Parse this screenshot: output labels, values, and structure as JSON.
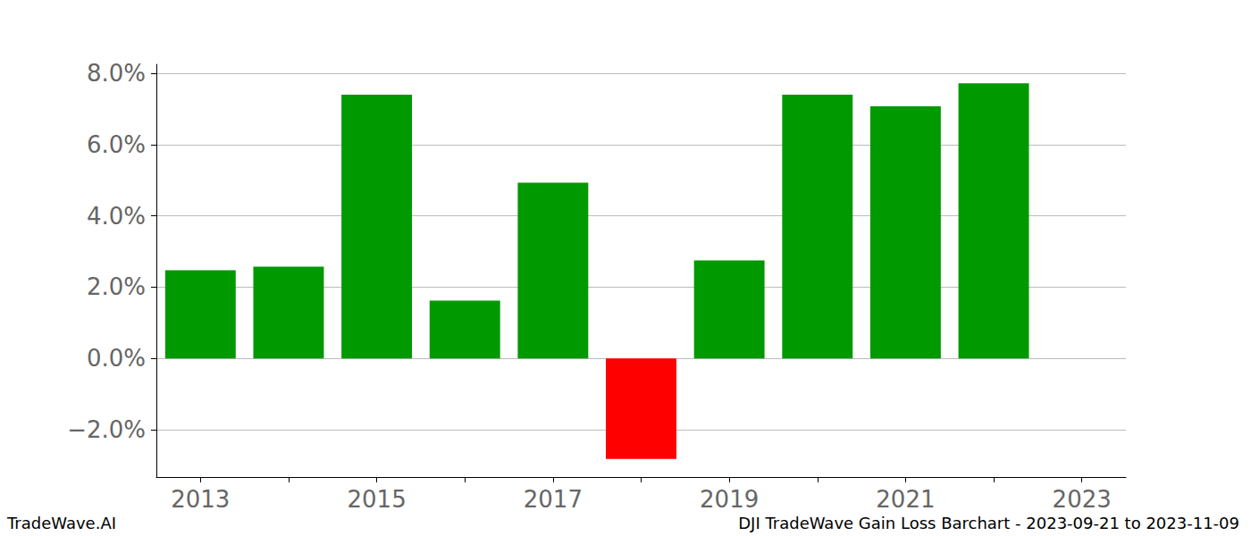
{
  "chart_data": {
    "type": "bar",
    "categories": [
      "2013",
      null,
      "2015",
      null,
      "2017",
      null,
      "2019",
      null,
      "2021",
      null,
      "2023"
    ],
    "values": [
      2.47,
      2.57,
      7.4,
      1.62,
      4.93,
      -2.82,
      2.75,
      7.4,
      7.07,
      7.72,
      null
    ],
    "colors": [
      "#009900",
      "#009900",
      "#009900",
      "#009900",
      "#009900",
      "#ff0000",
      "#009900",
      "#009900",
      "#009900",
      "#009900",
      "#009900"
    ],
    "ylim": [
      -3.33,
      8.25
    ],
    "yticks": [
      {
        "value": -2,
        "label": "−2.0%"
      },
      {
        "value": 0,
        "label": "0.0%"
      },
      {
        "value": 2,
        "label": "2.0%"
      },
      {
        "value": 4,
        "label": "4.0%"
      },
      {
        "value": 6,
        "label": "6.0%"
      },
      {
        "value": 8,
        "label": "8.0%"
      }
    ],
    "grid": true,
    "annotations": [
      "TradeWave.AI",
      "DJI TradeWave Gain Loss Barchart - 2023-09-21 to 2023-11-09"
    ]
  }
}
